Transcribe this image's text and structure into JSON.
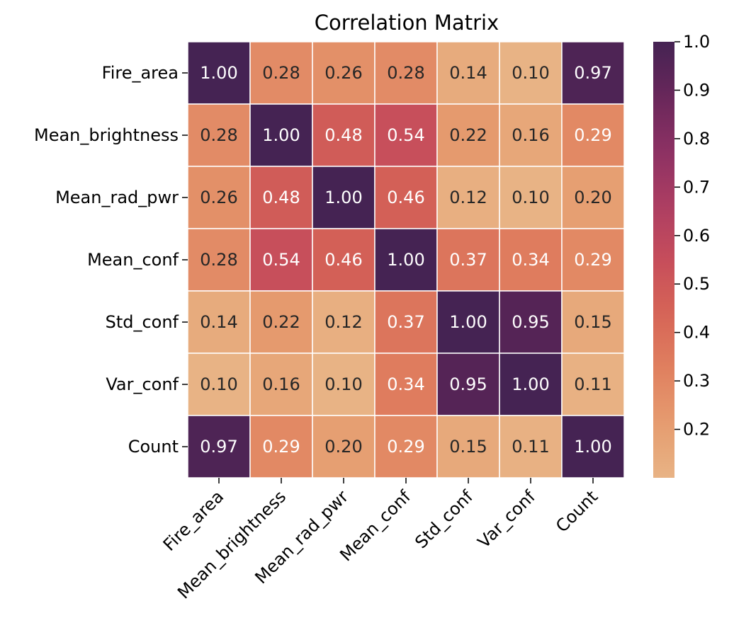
{
  "chart_data": {
    "type": "heatmap",
    "title": "Correlation Matrix",
    "x_labels": [
      "Fire_area",
      "Mean_brightness",
      "Mean_rad_pwr",
      "Mean_conf",
      "Std_conf",
      "Var_conf",
      "Count"
    ],
    "y_labels": [
      "Fire_area",
      "Mean_brightness",
      "Mean_rad_pwr",
      "Mean_conf",
      "Std_conf",
      "Var_conf",
      "Count"
    ],
    "values": [
      [
        1.0,
        0.28,
        0.26,
        0.28,
        0.14,
        0.1,
        0.97
      ],
      [
        0.28,
        1.0,
        0.48,
        0.54,
        0.22,
        0.16,
        0.29
      ],
      [
        0.26,
        0.48,
        1.0,
        0.46,
        0.12,
        0.1,
        0.2
      ],
      [
        0.28,
        0.54,
        0.46,
        1.0,
        0.37,
        0.34,
        0.29
      ],
      [
        0.14,
        0.22,
        0.12,
        0.37,
        1.0,
        0.95,
        0.15
      ],
      [
        0.1,
        0.16,
        0.1,
        0.34,
        0.95,
        1.0,
        0.11
      ],
      [
        0.97,
        0.29,
        0.2,
        0.29,
        0.15,
        0.11,
        1.0
      ]
    ],
    "cell_labels": [
      [
        "1.00",
        "0.28",
        "0.26",
        "0.28",
        "0.14",
        "0.10",
        "0.97"
      ],
      [
        "0.28",
        "1.00",
        "0.48",
        "0.54",
        "0.22",
        "0.16",
        "0.29"
      ],
      [
        "0.26",
        "0.48",
        "1.00",
        "0.46",
        "0.12",
        "0.10",
        "0.20"
      ],
      [
        "0.28",
        "0.54",
        "0.46",
        "1.00",
        "0.37",
        "0.34",
        "0.29"
      ],
      [
        "0.14",
        "0.22",
        "0.12",
        "0.37",
        "1.00",
        "0.95",
        "0.15"
      ],
      [
        "0.10",
        "0.16",
        "0.10",
        "0.34",
        "0.95",
        "1.00",
        "0.11"
      ],
      [
        "0.97",
        "0.29",
        "0.20",
        "0.29",
        "0.15",
        "0.11",
        "1.00"
      ]
    ],
    "colormap": "flare",
    "color_range": [
      0.1,
      1.0
    ],
    "colorbar_ticks": [
      0.2,
      0.3,
      0.4,
      0.5,
      0.6,
      0.7,
      0.8,
      0.9,
      1.0
    ],
    "colorbar_tick_labels": [
      "0.2",
      "0.3",
      "0.4",
      "0.5",
      "0.6",
      "0.7",
      "0.8",
      "0.9",
      "1.0"
    ],
    "colorbar_position": "right",
    "grid": true,
    "x_tick_rotation_deg": 45
  },
  "colors": {
    "low": "#e8b385",
    "high": "#452353",
    "cell_border": "#ffffff",
    "annotation_light": "#ffffff",
    "annotation_dark": "#262626"
  }
}
